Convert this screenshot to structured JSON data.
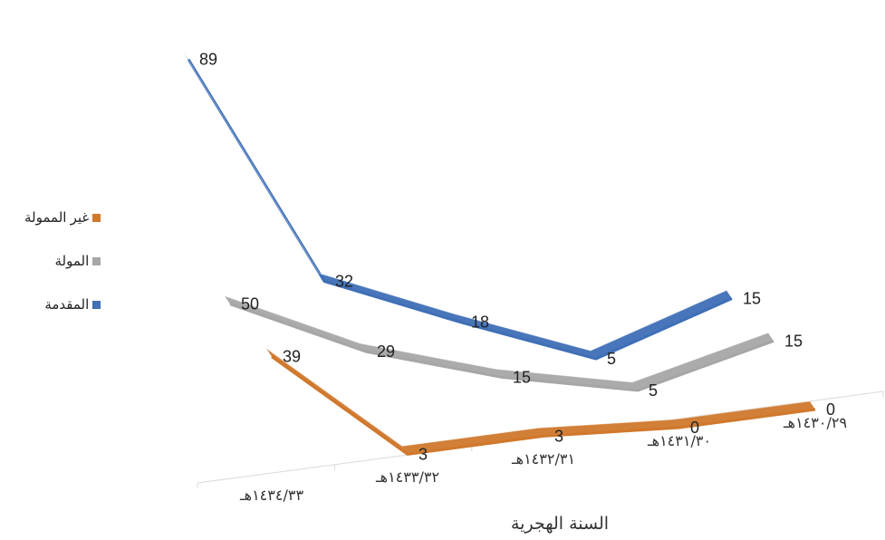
{
  "chart_data": {
    "type": "line",
    "style": "3d-ribbon",
    "xlabel": "السنة الهجرية",
    "categories": [
      "١٤٣٤/٣٣هـ",
      "١٤٣٣/٣٢هـ",
      "١٤٣٢/٣١هـ",
      "١٤٣١/٣٠هـ",
      "١٤٣٠/٢٩هـ"
    ],
    "series": [
      {
        "name": "المقدمة",
        "color": "#3F6FB6",
        "values": [
          89,
          32,
          18,
          5,
          15
        ]
      },
      {
        "name": "المولة",
        "color": "#A6A6A6",
        "values": [
          50,
          29,
          15,
          5,
          15
        ]
      },
      {
        "name": "غير الممولة",
        "color": "#D0782C",
        "values": [
          39,
          3,
          3,
          0,
          0
        ]
      }
    ],
    "legend_position": "left",
    "grid": false
  }
}
